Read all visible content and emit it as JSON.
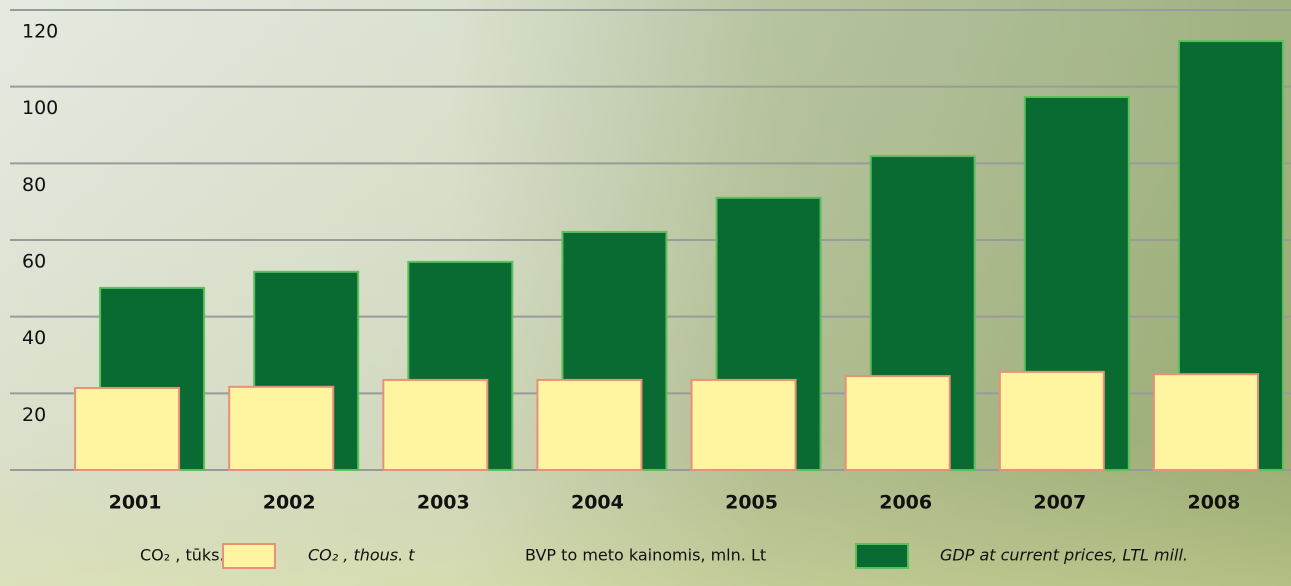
{
  "chart_data": {
    "type": "bar",
    "categories": [
      "2001",
      "2002",
      "2003",
      "2004",
      "2005",
      "2006",
      "2007",
      "2008"
    ],
    "series": [
      {
        "name": "CO₂ , tūks. t",
        "name_en": "CO₂ , thous. t",
        "color": "#fff4a0",
        "edge": "#e8907a",
        "values": [
          21.4,
          21.7,
          23.5,
          23.5,
          23.5,
          24.5,
          25.6,
          25
        ]
      },
      {
        "name": "BVP to meto kainomis, mln. Lt",
        "name_en": "GDP at current prices, LTL mill.",
        "color": "#0a6b32",
        "edge": "#5cbf5c",
        "values": [
          47.5,
          51.7,
          54.3,
          62.1,
          71,
          81.9,
          97.3,
          111.9
        ]
      }
    ],
    "ylim": [
      0,
      120
    ],
    "yticks": [
      20,
      40,
      60,
      80,
      100,
      120
    ],
    "grid": true
  }
}
